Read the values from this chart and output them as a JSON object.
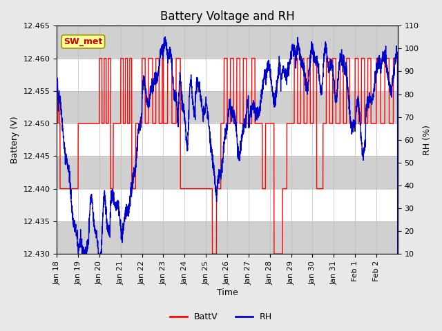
{
  "title": "Battery Voltage and RH",
  "xlabel": "Time",
  "ylabel_left": "Battery (V)",
  "ylabel_right": "RH (%)",
  "annotation": "SW_met",
  "ylim_left": [
    12.43,
    12.465
  ],
  "ylim_right": [
    10,
    110
  ],
  "yticks_left": [
    12.43,
    12.435,
    12.44,
    12.445,
    12.45,
    12.455,
    12.46,
    12.465
  ],
  "yticks_right": [
    10,
    20,
    30,
    40,
    50,
    60,
    70,
    80,
    90,
    100,
    110
  ],
  "xtick_labels": [
    "Jan 18",
    "Jan 19",
    "Jan 20",
    "Jan 21",
    "Jan 22",
    "Jan 23",
    "Jan 24",
    "Jan 25",
    "Jan 26",
    "Jan 27",
    "Jan 28",
    "Jan 29",
    "Jan 30",
    "Jan 31",
    "Feb 1",
    "Feb 2"
  ],
  "bg_color": "#e8e8e8",
  "plot_bg_color": "#ffffff",
  "band_dark_color": "#d0d0d0",
  "line_batt_color": "#ff0000",
  "line_rh_color": "#0000cc",
  "legend_batt": "BattV",
  "legend_rh": "RH",
  "title_fontsize": 12,
  "axis_fontsize": 9,
  "tick_fontsize": 8,
  "n_days": 16
}
